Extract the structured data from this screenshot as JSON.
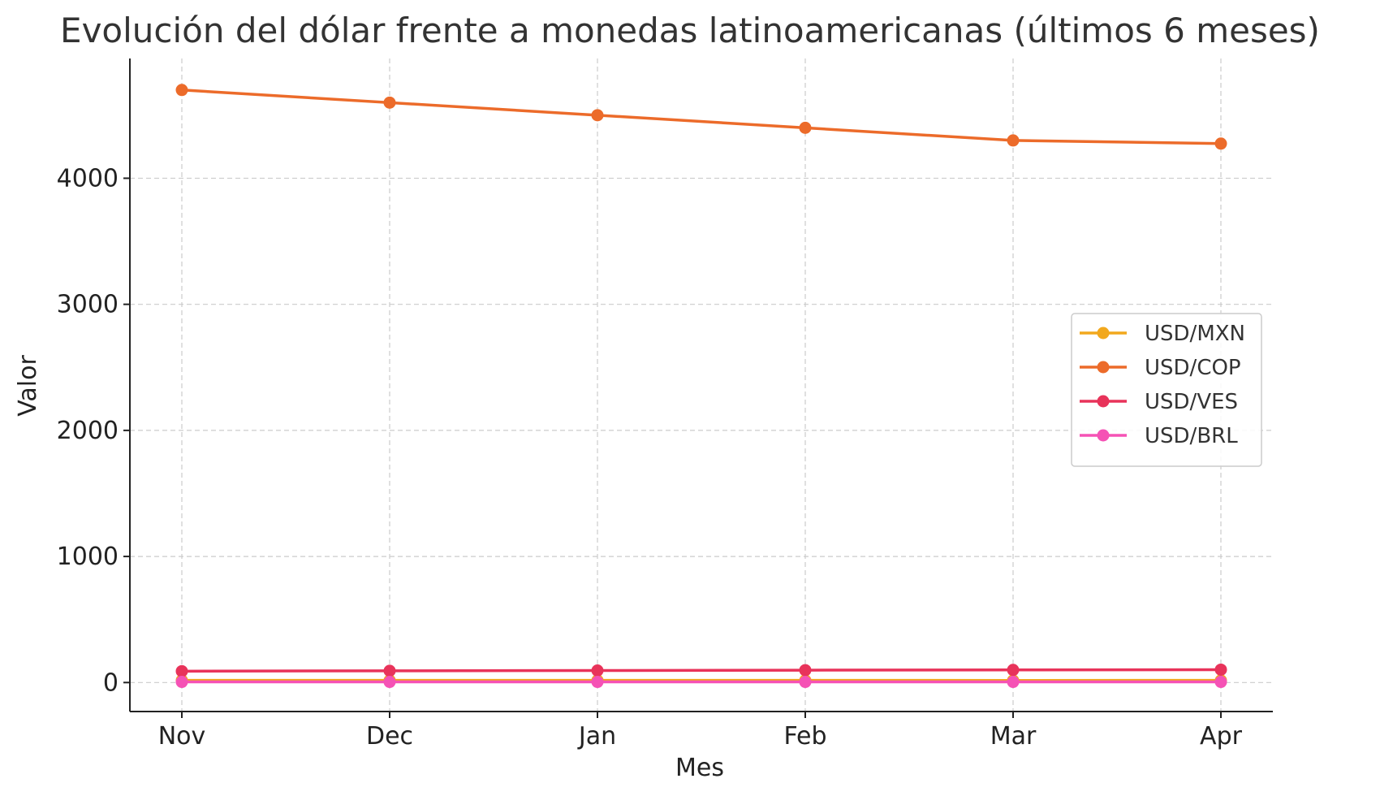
{
  "chart_data": {
    "type": "line",
    "title": "Evolución del dólar frente a monedas latinoamericanas (últimos 6 meses)",
    "xlabel": "Mes",
    "ylabel": "Valor",
    "categories": [
      "Nov",
      "Dec",
      "Jan",
      "Feb",
      "Mar",
      "Apr"
    ],
    "yticks": [
      0,
      1000,
      2000,
      3000,
      4000
    ],
    "ylim": [
      -230,
      4950
    ],
    "grid": true,
    "legend_position": "center-right",
    "series": [
      {
        "name": "USD/MXN",
        "color": "#F2A81D",
        "values": [
          17.5,
          17.2,
          17.0,
          17.1,
          16.8,
          16.9
        ]
      },
      {
        "name": "USD/COP",
        "color": "#EC6B2A",
        "values": [
          4700,
          4600,
          4500,
          4400,
          4300,
          4275
        ]
      },
      {
        "name": "USD/VES",
        "color": "#E8335A",
        "values": [
          90,
          93,
          95,
          98,
          100,
          102
        ]
      },
      {
        "name": "USD/BRL",
        "color": "#F552B5",
        "values": [
          4.9,
          4.9,
          5.0,
          5.0,
          5.1,
          5.0
        ]
      }
    ]
  }
}
